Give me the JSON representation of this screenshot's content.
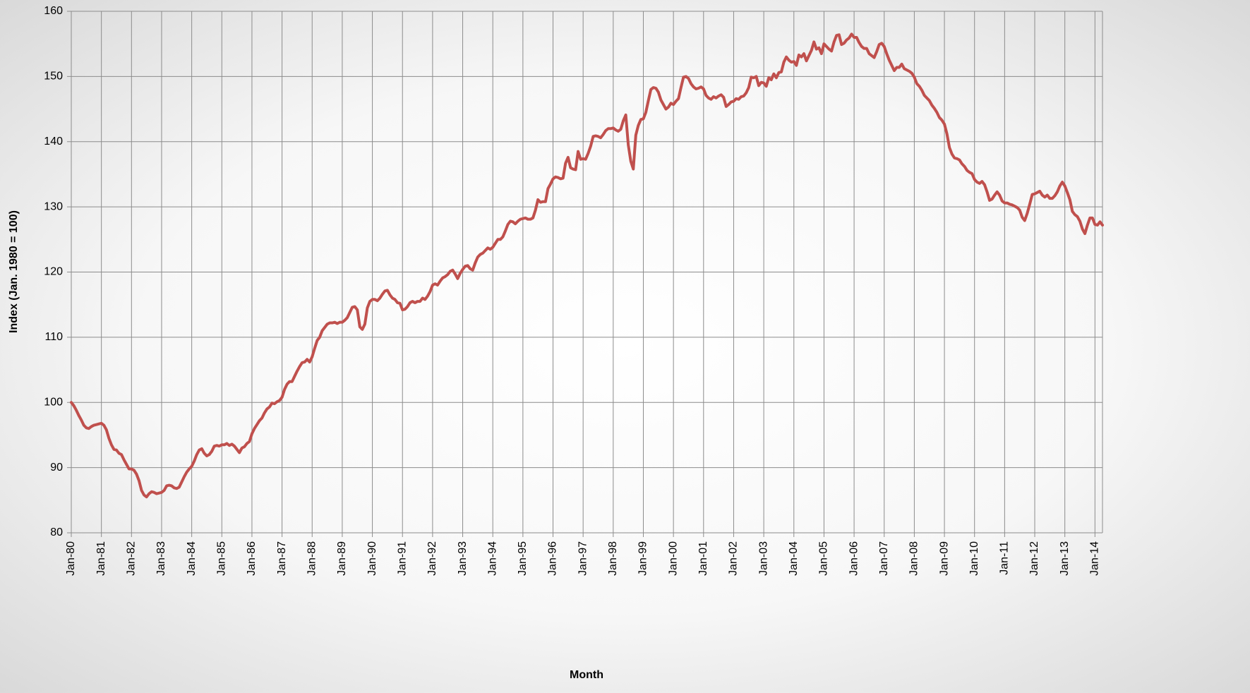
{
  "chart_data": {
    "type": "line",
    "y_label": "Index (Jan. 1980 = 100)",
    "x_label": "Month",
    "color": "#c0504d",
    "grid": true,
    "ylim": [
      80,
      160
    ],
    "yticks": [
      80,
      90,
      100,
      110,
      120,
      130,
      140,
      150,
      160
    ],
    "categories": [
      "Jan-80",
      null,
      null,
      null,
      null,
      null,
      null,
      null,
      null,
      null,
      null,
      null,
      "Jan-81",
      null,
      null,
      null,
      null,
      null,
      null,
      null,
      null,
      null,
      null,
      null,
      "Jan-82",
      null,
      null,
      null,
      null,
      null,
      null,
      null,
      null,
      null,
      null,
      null,
      "Jan-83",
      null,
      null,
      null,
      null,
      null,
      null,
      null,
      null,
      null,
      null,
      null,
      "Jan-84",
      null,
      null,
      null,
      null,
      null,
      null,
      null,
      null,
      null,
      null,
      null,
      "Jan-85",
      null,
      null,
      null,
      null,
      null,
      null,
      null,
      null,
      null,
      null,
      null,
      "Jan-86",
      null,
      null,
      null,
      null,
      null,
      null,
      null,
      null,
      null,
      null,
      null,
      "Jan-87",
      null,
      null,
      null,
      null,
      null,
      null,
      null,
      null,
      null,
      null,
      null,
      "Jan-88",
      null,
      null,
      null,
      null,
      null,
      null,
      null,
      null,
      null,
      null,
      null,
      "Jan-89",
      null,
      null,
      null,
      null,
      null,
      null,
      null,
      null,
      null,
      null,
      null,
      "Jan-90",
      null,
      null,
      null,
      null,
      null,
      null,
      null,
      null,
      null,
      null,
      null,
      "Jan-91",
      null,
      null,
      null,
      null,
      null,
      null,
      null,
      null,
      null,
      null,
      null,
      "Jan-92",
      null,
      null,
      null,
      null,
      null,
      null,
      null,
      null,
      null,
      null,
      null,
      "Jan-93",
      null,
      null,
      null,
      null,
      null,
      null,
      null,
      null,
      null,
      null,
      null,
      "Jan-94",
      null,
      null,
      null,
      null,
      null,
      null,
      null,
      null,
      null,
      null,
      null,
      "Jan-95",
      null,
      null,
      null,
      null,
      null,
      null,
      null,
      null,
      null,
      null,
      null,
      "Jan-96",
      null,
      null,
      null,
      null,
      null,
      null,
      null,
      null,
      null,
      null,
      null,
      "Jan-97",
      null,
      null,
      null,
      null,
      null,
      null,
      null,
      null,
      null,
      null,
      null,
      "Jan-98",
      null,
      null,
      null,
      null,
      null,
      null,
      null,
      null,
      null,
      null,
      null,
      "Jan-99",
      null,
      null,
      null,
      null,
      null,
      null,
      null,
      null,
      null,
      null,
      null,
      "Jan-00",
      null,
      null,
      null,
      null,
      null,
      null,
      null,
      null,
      null,
      null,
      null,
      "Jan-01",
      null,
      null,
      null,
      null,
      null,
      null,
      null,
      null,
      null,
      null,
      null,
      "Jan-02",
      null,
      null,
      null,
      null,
      null,
      null,
      null,
      null,
      null,
      null,
      null,
      "Jan-03",
      null,
      null,
      null,
      null,
      null,
      null,
      null,
      null,
      null,
      null,
      null,
      "Jan-04",
      null,
      null,
      null,
      null,
      null,
      null,
      null,
      null,
      null,
      null,
      null,
      "Jan-05",
      null,
      null,
      null,
      null,
      null,
      null,
      null,
      null,
      null,
      null,
      null,
      "Jan-06",
      null,
      null,
      null,
      null,
      null,
      null,
      null,
      null,
      null,
      null,
      null,
      "Jan-07",
      null,
      null,
      null,
      null,
      null,
      null,
      null,
      null,
      null,
      null,
      null,
      "Jan-08",
      null,
      null,
      null,
      null,
      null,
      null,
      null,
      null,
      null,
      null,
      null,
      "Jan-09",
      null,
      null,
      null,
      null,
      null,
      null,
      null,
      null,
      null,
      null,
      null,
      "Jan-10",
      null,
      null,
      null,
      null,
      null,
      null,
      null,
      null,
      null,
      null,
      null,
      "Jan-11",
      null,
      null,
      null,
      null,
      null,
      null,
      null,
      null,
      null,
      null,
      null,
      "Jan-12",
      null,
      null,
      null,
      null,
      null,
      null,
      null,
      null,
      null,
      null,
      null,
      "Jan-13",
      null,
      null,
      null,
      null,
      null,
      null,
      null,
      null,
      null,
      null,
      null,
      "Jan-14",
      null,
      null,
      null
    ],
    "values": [
      100,
      99.5,
      98.8,
      98,
      97.3,
      96.5,
      96.1,
      96,
      96.3,
      96.5,
      96.6,
      96.7,
      96.8,
      96.5,
      95.8,
      94.5,
      93.5,
      92.8,
      92.7,
      92.2,
      92,
      91.2,
      90.5,
      89.8,
      89.8,
      89.6,
      89,
      88,
      86.5,
      85.8,
      85.5,
      86,
      86.3,
      86.2,
      86,
      86.1,
      86.2,
      86.5,
      87.2,
      87.3,
      87.2,
      86.9,
      86.8,
      87,
      87.8,
      88.6,
      89.3,
      89.8,
      90.2,
      91,
      92,
      92.7,
      92.9,
      92.2,
      91.8,
      92,
      92.5,
      93.3,
      93.4,
      93.3,
      93.5,
      93.5,
      93.7,
      93.4,
      93.6,
      93.3,
      92.8,
      92.3,
      93,
      93.2,
      93.7,
      94,
      95.2,
      96,
      96.6,
      97.2,
      97.6,
      98.4,
      99,
      99.3,
      99.9,
      99.8,
      100.1,
      100.3,
      100.8,
      102,
      102.8,
      103.2,
      103.2,
      104,
      104.8,
      105.5,
      106.1,
      106.2,
      106.6,
      106.2,
      107,
      108.3,
      109.5,
      110,
      111,
      111.5,
      112,
      112.2,
      112.2,
      112.3,
      112.1,
      112.3,
      112.3,
      112.6,
      113,
      113.8,
      114.6,
      114.7,
      114.2,
      111.6,
      111.2,
      112,
      114.5,
      115.5,
      115.8,
      115.8,
      115.6,
      116,
      116.6,
      117.1,
      117.2,
      116.5,
      116,
      115.8,
      115.3,
      115.2,
      114.2,
      114.3,
      114.7,
      115.3,
      115.5,
      115.3,
      115.5,
      115.5,
      116,
      115.8,
      116.3,
      117,
      118,
      118.2,
      118,
      118.6,
      119.1,
      119.3,
      119.6,
      120.1,
      120.3,
      119.7,
      119,
      119.8,
      120.4,
      120.9,
      121,
      120.5,
      120.3,
      121.4,
      122.3,
      122.7,
      122.9,
      123.3,
      123.7,
      123.5,
      123.8,
      124.4,
      125,
      125,
      125.4,
      126.3,
      127.3,
      127.8,
      127.7,
      127.4,
      127.8,
      128.1,
      128.2,
      128.3,
      128.1,
      128.1,
      128.3,
      129.5,
      131.1,
      130.7,
      130.8,
      130.8,
      132.8,
      133.5,
      134.3,
      134.6,
      134.5,
      134.3,
      134.4,
      136.7,
      137.6,
      136,
      135.8,
      135.7,
      138.5,
      137.3,
      137.4,
      137.3,
      138.2,
      139.3,
      140.8,
      140.9,
      140.8,
      140.6,
      141.1,
      141.7,
      142,
      142,
      142.1,
      141.8,
      141.6,
      141.9,
      143.2,
      144.1,
      139.5,
      137,
      135.8,
      141,
      142.5,
      143.4,
      143.5,
      144.5,
      146.3,
      148,
      148.3,
      148.2,
      147.6,
      146.4,
      145.7,
      145,
      145.3,
      145.9,
      145.7,
      146.2,
      146.6,
      148.3,
      149.9,
      150,
      149.7,
      148.9,
      148.4,
      148.1,
      148.2,
      148.4,
      148.1,
      147.1,
      146.7,
      146.5,
      146.9,
      146.7,
      147,
      147.2,
      146.8,
      145.4,
      145.7,
      146.1,
      146.2,
      146.6,
      146.5,
      146.9,
      147,
      147.5,
      148.3,
      149.9,
      149.8,
      150,
      148.6,
      149.1,
      149,
      148.5,
      149.8,
      149.5,
      150.4,
      149.8,
      150.6,
      150.7,
      152.2,
      153,
      152.5,
      152.2,
      152.3,
      151.7,
      153.3,
      153,
      153.5,
      152.4,
      153.2,
      154,
      155.3,
      154.2,
      154.4,
      153.5,
      155,
      154.6,
      154.2,
      153.9,
      155.3,
      156.3,
      156.4,
      154.9,
      155.1,
      155.6,
      155.9,
      156.5,
      156,
      156,
      155.2,
      154.6,
      154.3,
      154.3,
      153.5,
      153.2,
      152.9,
      153.8,
      154.9,
      155.1,
      154.6,
      153.5,
      152.5,
      151.7,
      150.9,
      151.4,
      151.4,
      151.9,
      151.2,
      151,
      150.8,
      150.5,
      149.9,
      148.9,
      148.5,
      147.9,
      147.1,
      146.7,
      146.3,
      145.6,
      145.1,
      144.5,
      143.7,
      143.3,
      142.7,
      141.2,
      139.1,
      138.1,
      137.5,
      137.4,
      137.2,
      136.6,
      136.2,
      135.6,
      135.3,
      135.1,
      134.2,
      133.8,
      133.6,
      133.9,
      133.4,
      132.3,
      131,
      131.2,
      131.8,
      132.3,
      131.8,
      130.9,
      130.6,
      130.6,
      130.4,
      130.3,
      130.1,
      129.9,
      129.5,
      128.4,
      127.9,
      129,
      130.4,
      131.9,
      132,
      132.2,
      132.4,
      131.8,
      131.5,
      131.8,
      131.3,
      131.3,
      131.7,
      132.3,
      133.2,
      133.8,
      133.2,
      132.2,
      131.1,
      129.3,
      128.8,
      128.5,
      127.8,
      126.6,
      125.9,
      127.2,
      128.3,
      128.3,
      127.3,
      127.2,
      127.7,
      127.2
    ]
  }
}
